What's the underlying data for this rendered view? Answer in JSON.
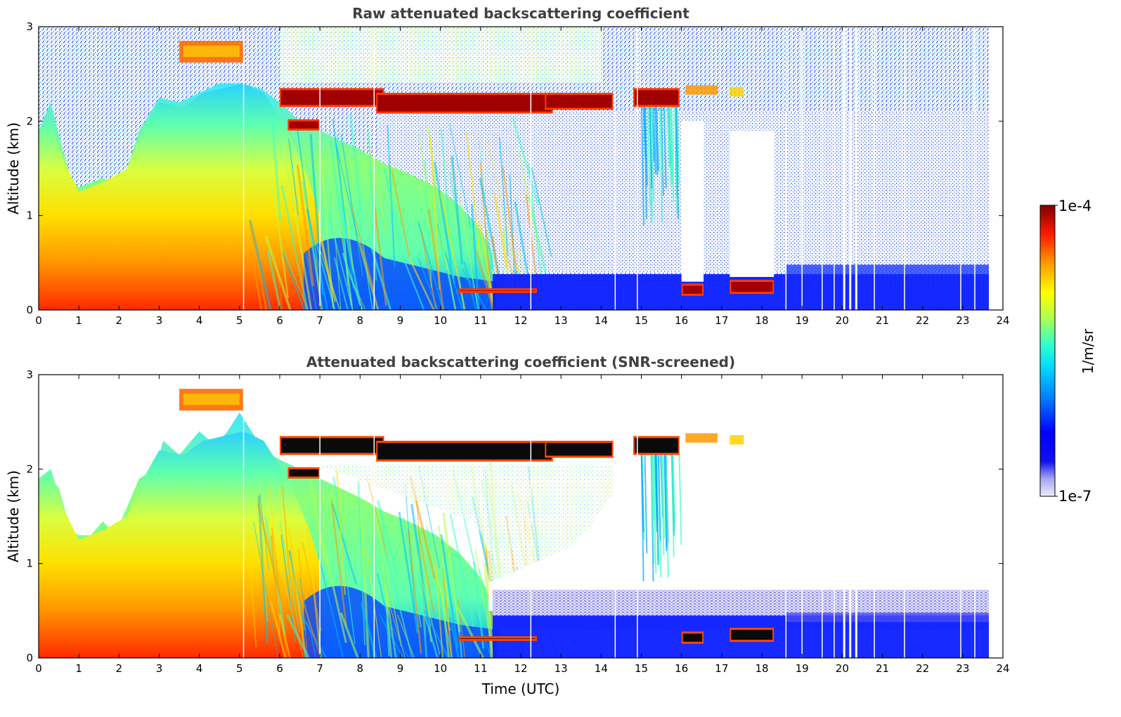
{
  "chart_data": [
    {
      "type": "heatmap",
      "title": "Raw attenuated backscattering coefficient",
      "xlabel": "",
      "ylabel": "Altitude (km)",
      "xlim": [
        0,
        24
      ],
      "ylim": [
        0,
        3
      ],
      "xticks": [
        "0",
        "1",
        "2",
        "3",
        "4",
        "5",
        "6",
        "7",
        "8",
        "9",
        "10",
        "11",
        "12",
        "13",
        "14",
        "15",
        "16",
        "17",
        "18",
        "19",
        "20",
        "21",
        "22",
        "23",
        "24"
      ],
      "yticks": [
        "0",
        "1",
        "2",
        "3"
      ],
      "features": [
        {
          "name": "boundary-layer aerosol",
          "t_start": 0,
          "t_end": 6,
          "alt_top_km": 2.2
        },
        {
          "name": "mid-level cloud",
          "t_start": 6,
          "t_end": 14.3,
          "alt_km": 2.2
        },
        {
          "name": "mid-level cloud",
          "t_start": 14.8,
          "t_end": 16,
          "alt_km": 2.25
        },
        {
          "name": "high aerosol layer",
          "t_start": 3.5,
          "t_end": 5.1,
          "alt_km": 2.75
        },
        {
          "name": "low cloud",
          "t_start": 16,
          "t_end": 16.6,
          "alt_km": 0.22
        },
        {
          "name": "low cloud",
          "t_start": 17.2,
          "t_end": 18.4,
          "alt_km": 0.25
        }
      ]
    },
    {
      "type": "heatmap",
      "title": "Attenuated backscattering coefficient (SNR-screened)",
      "xlabel": "Time (UTC)",
      "ylabel": "Altitude (km)",
      "xlim": [
        0,
        24
      ],
      "ylim": [
        0,
        3
      ],
      "xticks": [
        "0",
        "1",
        "2",
        "3",
        "4",
        "5",
        "6",
        "7",
        "8",
        "9",
        "10",
        "11",
        "12",
        "13",
        "14",
        "15",
        "16",
        "17",
        "18",
        "19",
        "20",
        "21",
        "22",
        "23",
        "24"
      ],
      "yticks": [
        "0",
        "1",
        "2",
        "3"
      ]
    }
  ],
  "colorbar": {
    "max_label": "1e-4",
    "min_label": "1e-7",
    "unit_label": "1/m/sr",
    "scale": "log",
    "colors": [
      "#e6e6fa",
      "#0000ff",
      "#00bfff",
      "#40ffc0",
      "#ffff00",
      "#ff8000",
      "#ff0000",
      "#800000"
    ]
  }
}
